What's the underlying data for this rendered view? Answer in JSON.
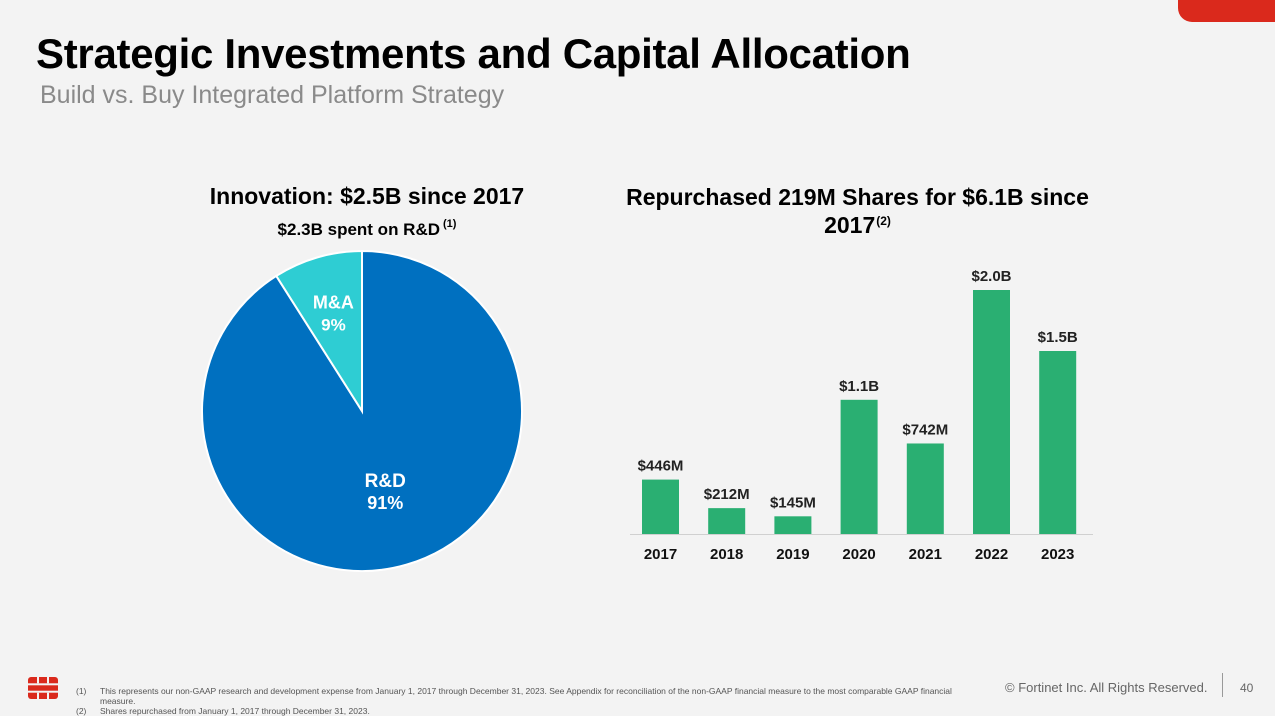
{
  "header": {
    "title": "Strategic Investments and Capital Allocation",
    "subtitle": "Build vs. Buy Integrated Platform Strategy"
  },
  "chart_data": [
    {
      "type": "pie",
      "title": "Innovation: $2.5B since 2017",
      "subtitle": "$2.3B spent on R&D",
      "subtitle_footnote": "(1)",
      "slices": [
        {
          "label": "R&D",
          "value": 91,
          "display": "91%",
          "color": "#0070c0"
        },
        {
          "label": "M&A",
          "value": 9,
          "display": "9%",
          "color": "#2ecdd3"
        }
      ]
    },
    {
      "type": "bar",
      "title": "Repurchased 219M Shares for $6.1B since 2017",
      "title_footnote": "(2)",
      "categories": [
        "2017",
        "2018",
        "2019",
        "2020",
        "2021",
        "2022",
        "2023"
      ],
      "values": [
        446,
        212,
        145,
        1100,
        742,
        2000,
        1500
      ],
      "labels": [
        "$446M",
        "$212M",
        "$145M",
        "$1.1B",
        "$742M",
        "$2.0B",
        "$1.5B"
      ],
      "unit": "$M",
      "ylim": [
        0,
        2000
      ],
      "color": "#2aaf72",
      "grid": false
    }
  ],
  "footer": {
    "footnotes": [
      {
        "num": "(1)",
        "text": "This represents our non-GAAP research and development expense from January 1, 2017 through December 31, 2023. See Appendix for reconciliation of the non-GAAP financial measure to the most comparable GAAP financial measure."
      },
      {
        "num": "(2)",
        "text": "Shares repurchased from January 1, 2017 through December 31, 2023."
      }
    ],
    "copyright": "© Fortinet Inc. All Rights Reserved.",
    "page_number": "40"
  },
  "colors": {
    "accent": "#da291c",
    "rd": "#0070c0",
    "ma": "#2ecdd3",
    "bars": "#2aaf72"
  },
  "icons": {
    "logo": "fortinet-logo-icon"
  }
}
